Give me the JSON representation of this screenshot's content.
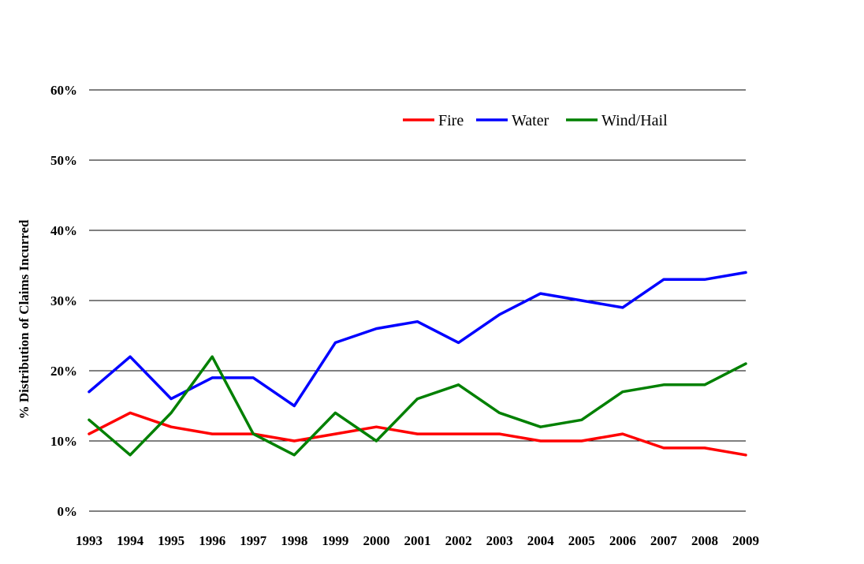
{
  "chart_data": {
    "type": "line",
    "title": "",
    "xlabel": "",
    "ylabel": "% Distribution of Claims Incurred",
    "x": [
      "1993",
      "1994",
      "1995",
      "1996",
      "1997",
      "1998",
      "1999",
      "2000",
      "2001",
      "2002",
      "2003",
      "2004",
      "2005",
      "2006",
      "2007",
      "2008",
      "2009"
    ],
    "ylim": [
      0,
      60
    ],
    "yticks": [
      0,
      10,
      20,
      30,
      40,
      50,
      60
    ],
    "ytick_labels": [
      "0%",
      "10%",
      "20%",
      "30%",
      "40%",
      "50%",
      "60%"
    ],
    "grid": true,
    "legend_position": "top-right",
    "series": [
      {
        "name": "Fire",
        "color": "#ff0000",
        "values": [
          11,
          14,
          12,
          11,
          11,
          10,
          11,
          12,
          11,
          11,
          11,
          10,
          10,
          11,
          9,
          9,
          8
        ]
      },
      {
        "name": "Water",
        "color": "#0000ff",
        "values": [
          17,
          22,
          16,
          19,
          19,
          15,
          24,
          26,
          27,
          24,
          28,
          31,
          30,
          29,
          33,
          33,
          34
        ]
      },
      {
        "name": "Wind/Hail",
        "color": "#008000",
        "values": [
          13,
          8,
          14,
          22,
          11,
          8,
          14,
          10,
          16,
          18,
          14,
          12,
          13,
          17,
          18,
          18,
          21
        ]
      }
    ]
  }
}
